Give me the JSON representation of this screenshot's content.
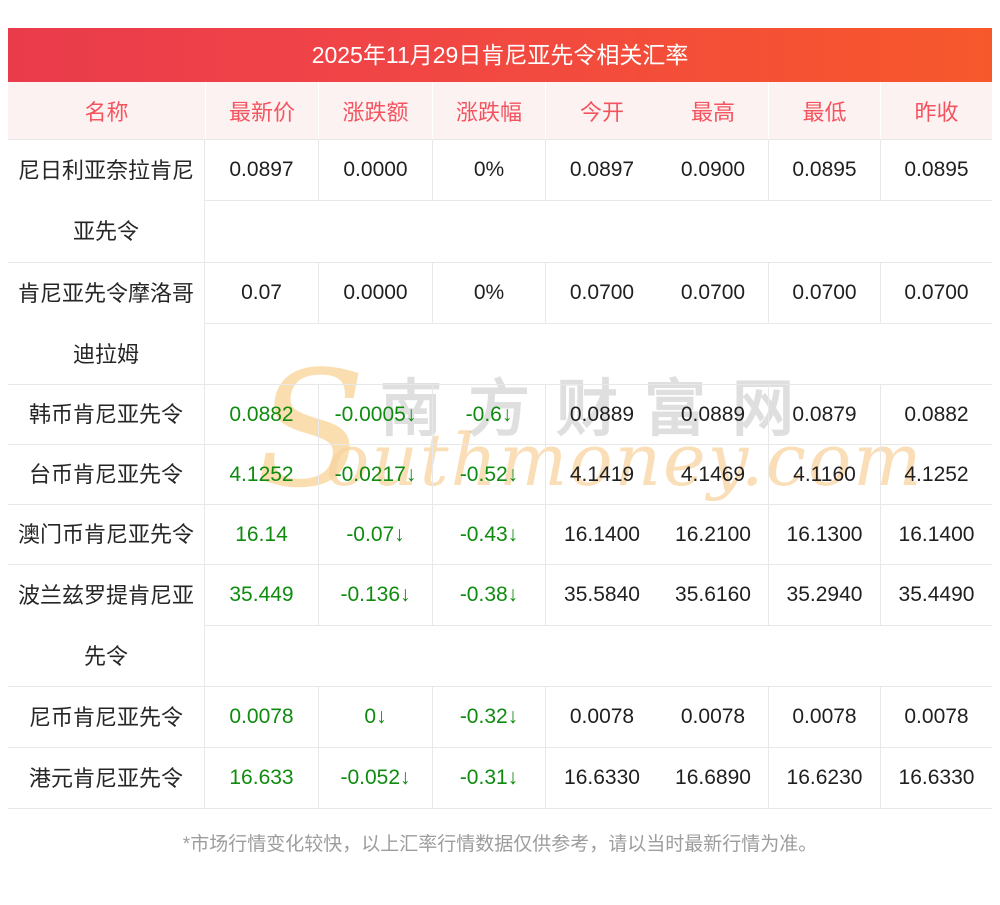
{
  "page": {
    "title": "2025年11月29日肯尼亚先令相关汇率",
    "footnote": "*市场行情变化较快，以上汇率行情数据仅供参考，请以当时最新行情为准。"
  },
  "table": {
    "columns": [
      "名称",
      "最新价",
      "涨跌额",
      "涨跌幅",
      "今开",
      "最高",
      "最低",
      "昨收"
    ],
    "rows": [
      {
        "name": "尼日利亚奈拉肯尼亚先令",
        "latest": "0.0897",
        "change": "0.0000",
        "change_pct": "0%",
        "open": "0.0897",
        "high": "0.0900",
        "low": "0.0895",
        "prev_close": "0.0895",
        "trend": "flat"
      },
      {
        "name": "肯尼亚先令摩洛哥迪拉姆",
        "latest": "0.07",
        "change": "0.0000",
        "change_pct": "0%",
        "open": "0.0700",
        "high": "0.0700",
        "low": "0.0700",
        "prev_close": "0.0700",
        "trend": "flat"
      },
      {
        "name": "韩币肯尼亚先令",
        "latest": "0.0882",
        "change": "-0.0005↓",
        "change_pct": "-0.6↓",
        "open": "0.0889",
        "high": "0.0889",
        "low": "0.0879",
        "prev_close": "0.0882",
        "trend": "down"
      },
      {
        "name": "台币肯尼亚先令",
        "latest": "4.1252",
        "change": "-0.0217↓",
        "change_pct": "-0.52↓",
        "open": "4.1419",
        "high": "4.1469",
        "low": "4.1160",
        "prev_close": "4.1252",
        "trend": "down"
      },
      {
        "name": "澳门币肯尼亚先令",
        "latest": "16.14",
        "change": "-0.07↓",
        "change_pct": "-0.43↓",
        "open": "16.1400",
        "high": "16.2100",
        "low": "16.1300",
        "prev_close": "16.1400",
        "trend": "down"
      },
      {
        "name": "波兰兹罗提肯尼亚先令",
        "latest": "35.449",
        "change": "-0.136↓",
        "change_pct": "-0.38↓",
        "open": "35.5840",
        "high": "35.6160",
        "low": "35.2940",
        "prev_close": "35.4490",
        "trend": "down"
      },
      {
        "name": "尼币肯尼亚先令",
        "latest": "0.0078",
        "change": "0↓",
        "change_pct": "-0.32↓",
        "open": "0.0078",
        "high": "0.0078",
        "low": "0.0078",
        "prev_close": "0.0078",
        "trend": "down"
      },
      {
        "name": "港元肯尼亚先令",
        "latest": "16.633",
        "change": "-0.052↓",
        "change_pct": "-0.31↓",
        "open": "16.6330",
        "high": "16.6890",
        "low": "16.6230",
        "prev_close": "16.6330",
        "trend": "down"
      }
    ]
  },
  "watermark": {
    "s_glyph": "S",
    "script": "outhmoney.com",
    "cjk": "南方财富网"
  },
  "colors": {
    "title_gradient_left": "#e93b4b",
    "title_gradient_right": "#f7582b",
    "table_header_bg": "#fdf2f2",
    "table_header_text": "#f4545f",
    "down_green": "#0f8c0f",
    "text_dark": "#1f1f1f",
    "border_gray": "#e8e8e8",
    "footnote_gray": "#9d9d9d",
    "watermark_orange": "#f8d4a0"
  }
}
